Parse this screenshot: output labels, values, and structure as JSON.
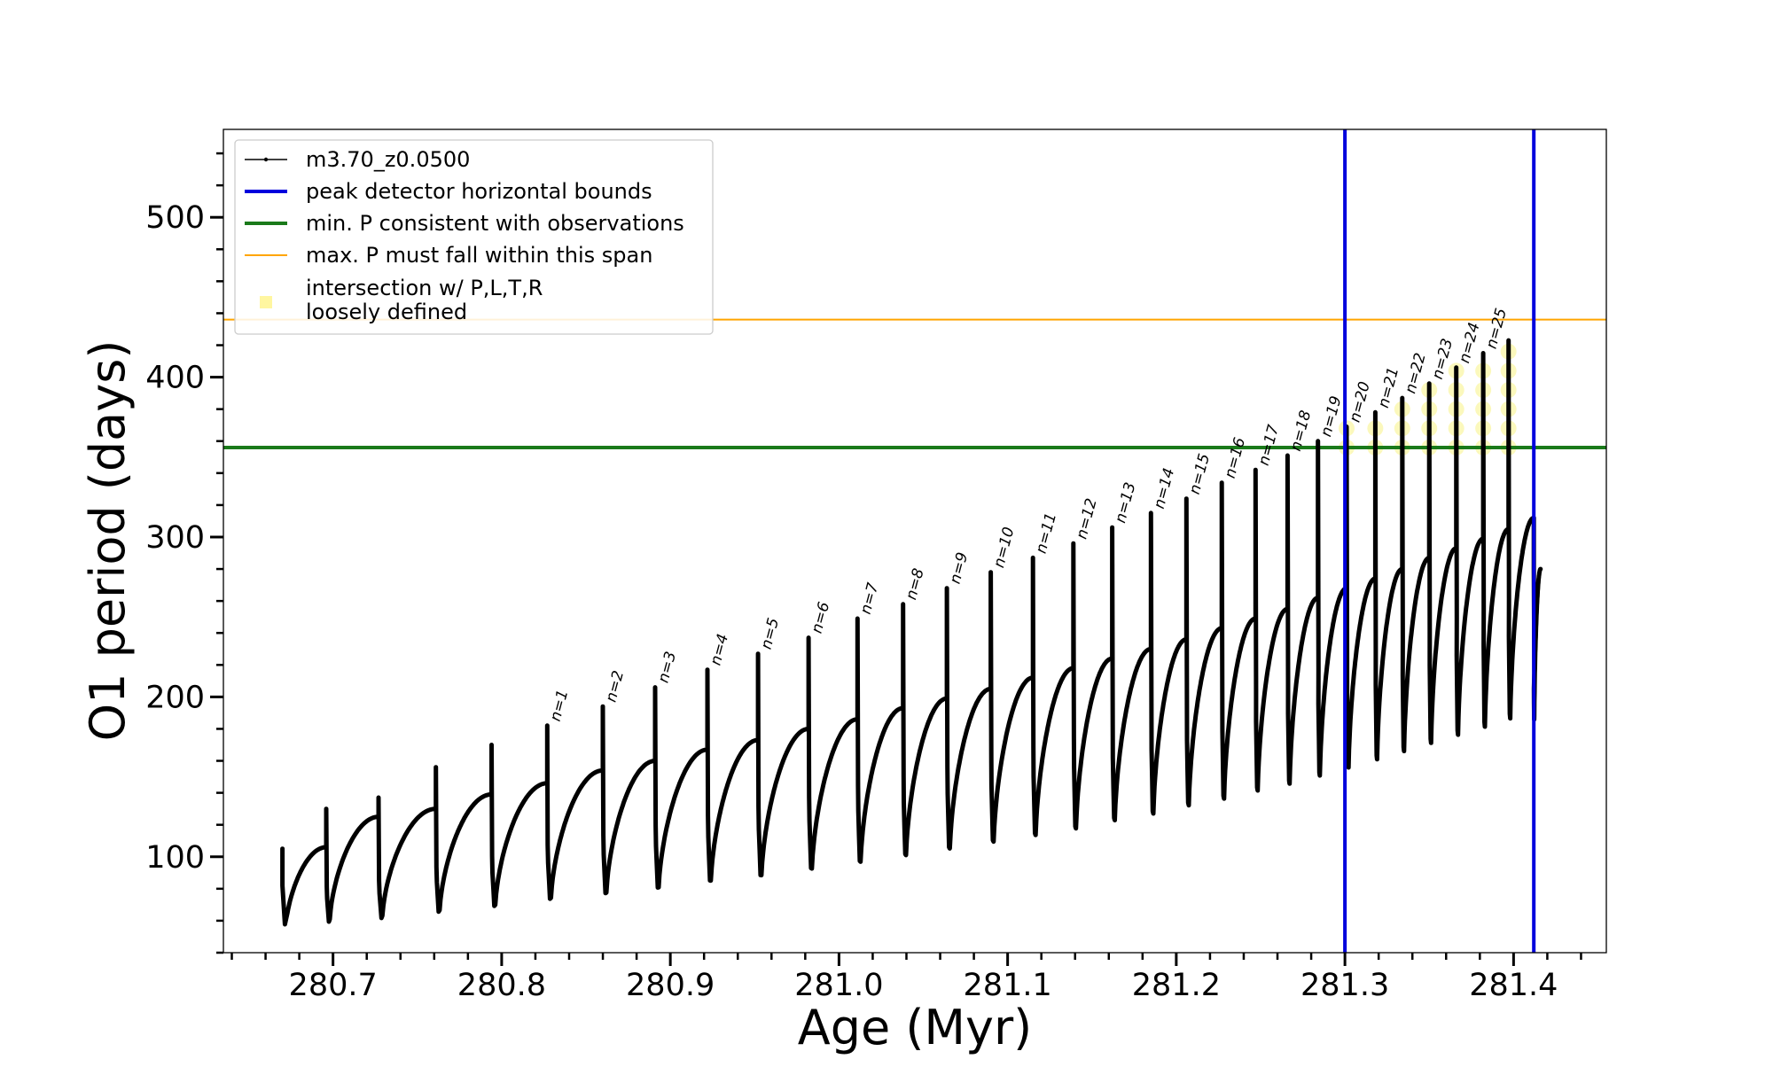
{
  "chart_data": {
    "type": "line",
    "title": "",
    "xlabel": "Age (Myr)",
    "ylabel": "O1 period (days)",
    "xlim": [
      280.635,
      281.455
    ],
    "ylim": [
      40,
      555
    ],
    "x_ticks": [
      280.7,
      280.8,
      280.9,
      281.0,
      281.1,
      281.2,
      281.3,
      281.4
    ],
    "x_tick_labels": [
      "280.7",
      "280.8",
      "280.9",
      "281.0",
      "281.1",
      "281.2",
      "281.3",
      "281.4"
    ],
    "y_ticks": [
      100,
      200,
      300,
      400,
      500
    ],
    "y_tick_labels": [
      "100",
      "200",
      "300",
      "400",
      "500"
    ],
    "grid": false,
    "legend_position": "top-left",
    "legend": [
      {
        "label": "m3.70_z0.0500",
        "color": "#000000",
        "style": "line-marker"
      },
      {
        "label": "peak detector horizontal bounds",
        "color": "#0000dd",
        "style": "line"
      },
      {
        "label": "min. P consistent with observations",
        "color": "#1a7a1a",
        "style": "line"
      },
      {
        "label": "max. P must fall within this span",
        "color": "#ffa500",
        "style": "thin-line"
      },
      {
        "label": "intersection w/ P,L,T,R",
        "label2": "loosely defined",
        "color": "#fff6a0",
        "style": "marker"
      }
    ],
    "vertical_lines": [
      281.3,
      281.412
    ],
    "min_p_line": 356,
    "max_p_line": 436,
    "series": [
      {
        "name": "m3.70_z0.0500",
        "cycles": [
          {
            "start": 280.67,
            "end": 280.696,
            "min": 50,
            "max": 106,
            "peak": 105,
            "label": ""
          },
          {
            "start": 280.696,
            "end": 280.727,
            "min": 55,
            "max": 125,
            "peak": 130,
            "label": ""
          },
          {
            "start": 280.727,
            "end": 280.761,
            "min": 57,
            "max": 130,
            "peak": 137,
            "label": ""
          },
          {
            "start": 280.761,
            "end": 280.794,
            "min": 60,
            "max": 139,
            "peak": 156,
            "label": ""
          },
          {
            "start": 280.794,
            "end": 280.827,
            "min": 63,
            "max": 146,
            "peak": 170,
            "label": ""
          },
          {
            "start": 280.827,
            "end": 280.86,
            "min": 67,
            "max": 154,
            "peak": 182,
            "label": "n=1"
          },
          {
            "start": 280.86,
            "end": 280.891,
            "min": 70,
            "max": 160,
            "peak": 194,
            "label": "n=2"
          },
          {
            "start": 280.891,
            "end": 280.922,
            "min": 73,
            "max": 167,
            "peak": 206,
            "label": "n=3"
          },
          {
            "start": 280.922,
            "end": 280.952,
            "min": 77,
            "max": 173,
            "peak": 217,
            "label": "n=4"
          },
          {
            "start": 280.952,
            "end": 280.982,
            "min": 80,
            "max": 180,
            "peak": 227,
            "label": "n=5"
          },
          {
            "start": 280.982,
            "end": 281.011,
            "min": 84,
            "max": 186,
            "peak": 237,
            "label": "n=6"
          },
          {
            "start": 281.011,
            "end": 281.038,
            "min": 88,
            "max": 193,
            "peak": 249,
            "label": "n=7"
          },
          {
            "start": 281.038,
            "end": 281.064,
            "min": 92,
            "max": 199,
            "peak": 258,
            "label": "n=8"
          },
          {
            "start": 281.064,
            "end": 281.09,
            "min": 96,
            "max": 205,
            "peak": 268,
            "label": "n=9"
          },
          {
            "start": 281.09,
            "end": 281.115,
            "min": 100,
            "max": 212,
            "peak": 278,
            "label": "n=10"
          },
          {
            "start": 281.115,
            "end": 281.139,
            "min": 104,
            "max": 218,
            "peak": 287,
            "label": "n=11"
          },
          {
            "start": 281.139,
            "end": 281.162,
            "min": 108,
            "max": 224,
            "peak": 296,
            "label": "n=12"
          },
          {
            "start": 281.162,
            "end": 281.185,
            "min": 113,
            "max": 230,
            "peak": 306,
            "label": "n=13"
          },
          {
            "start": 281.185,
            "end": 281.206,
            "min": 117,
            "max": 236,
            "peak": 315,
            "label": "n=14"
          },
          {
            "start": 281.206,
            "end": 281.227,
            "min": 122,
            "max": 243,
            "peak": 324,
            "label": "n=15"
          },
          {
            "start": 281.227,
            "end": 281.247,
            "min": 126,
            "max": 249,
            "peak": 334,
            "label": "n=16"
          },
          {
            "start": 281.247,
            "end": 281.266,
            "min": 131,
            "max": 255,
            "peak": 342,
            "label": "n=17"
          },
          {
            "start": 281.266,
            "end": 281.284,
            "min": 135,
            "max": 262,
            "peak": 351,
            "label": "n=18"
          },
          {
            "start": 281.284,
            "end": 281.301,
            "min": 140,
            "max": 268,
            "peak": 360,
            "label": "n=19"
          },
          {
            "start": 281.301,
            "end": 281.318,
            "min": 145,
            "max": 274,
            "peak": 369,
            "label": "n=20"
          },
          {
            "start": 281.318,
            "end": 281.334,
            "min": 150,
            "max": 280,
            "peak": 378,
            "label": "n=21"
          },
          {
            "start": 281.334,
            "end": 281.35,
            "min": 155,
            "max": 287,
            "peak": 387,
            "label": "n=22"
          },
          {
            "start": 281.35,
            "end": 281.366,
            "min": 160,
            "max": 293,
            "peak": 396,
            "label": "n=23"
          },
          {
            "start": 281.366,
            "end": 281.382,
            "min": 165,
            "max": 299,
            "peak": 406,
            "label": "n=24"
          },
          {
            "start": 281.382,
            "end": 281.397,
            "min": 170,
            "max": 305,
            "peak": 415,
            "label": "n=25"
          },
          {
            "start": 281.397,
            "end": 281.412,
            "min": 175,
            "max": 312,
            "peak": 423,
            "label": ""
          },
          {
            "start": 281.412,
            "end": 281.416,
            "min": 180,
            "max": 280,
            "peak": 280,
            "label": ""
          }
        ]
      }
    ]
  }
}
